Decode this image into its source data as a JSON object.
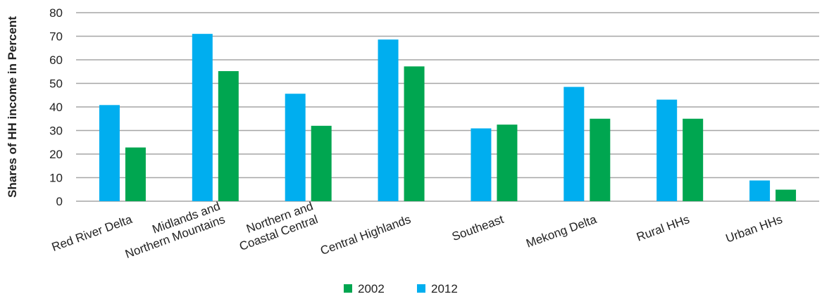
{
  "chart_data": {
    "type": "bar",
    "ylabel": "Shares of HH income in Percent",
    "ylim": [
      0,
      80
    ],
    "yticks": [
      0,
      10,
      20,
      30,
      40,
      50,
      60,
      70,
      80
    ],
    "grid": true,
    "legend_position": "bottom-center",
    "categories": [
      [
        "Red River Delta"
      ],
      [
        "Midlands and",
        "Northern Mountains"
      ],
      [
        "Northern and",
        "Coastal Central"
      ],
      [
        "Central Highlands"
      ],
      [
        "Southeast"
      ],
      [
        "Mekong Delta"
      ],
      [
        "Rural HHs"
      ],
      [
        "Urban HHs"
      ]
    ],
    "series": [
      {
        "name": "2012",
        "color": "#00AEEF",
        "values": [
          40.8,
          71.0,
          45.6,
          68.6,
          30.9,
          48.5,
          43.1,
          8.8
        ]
      },
      {
        "name": "2002",
        "color": "#00A650",
        "values": [
          22.8,
          55.2,
          32.0,
          57.2,
          32.5,
          35.0,
          35.0,
          4.9
        ]
      }
    ],
    "legend_order": [
      "2002",
      "2012"
    ]
  }
}
